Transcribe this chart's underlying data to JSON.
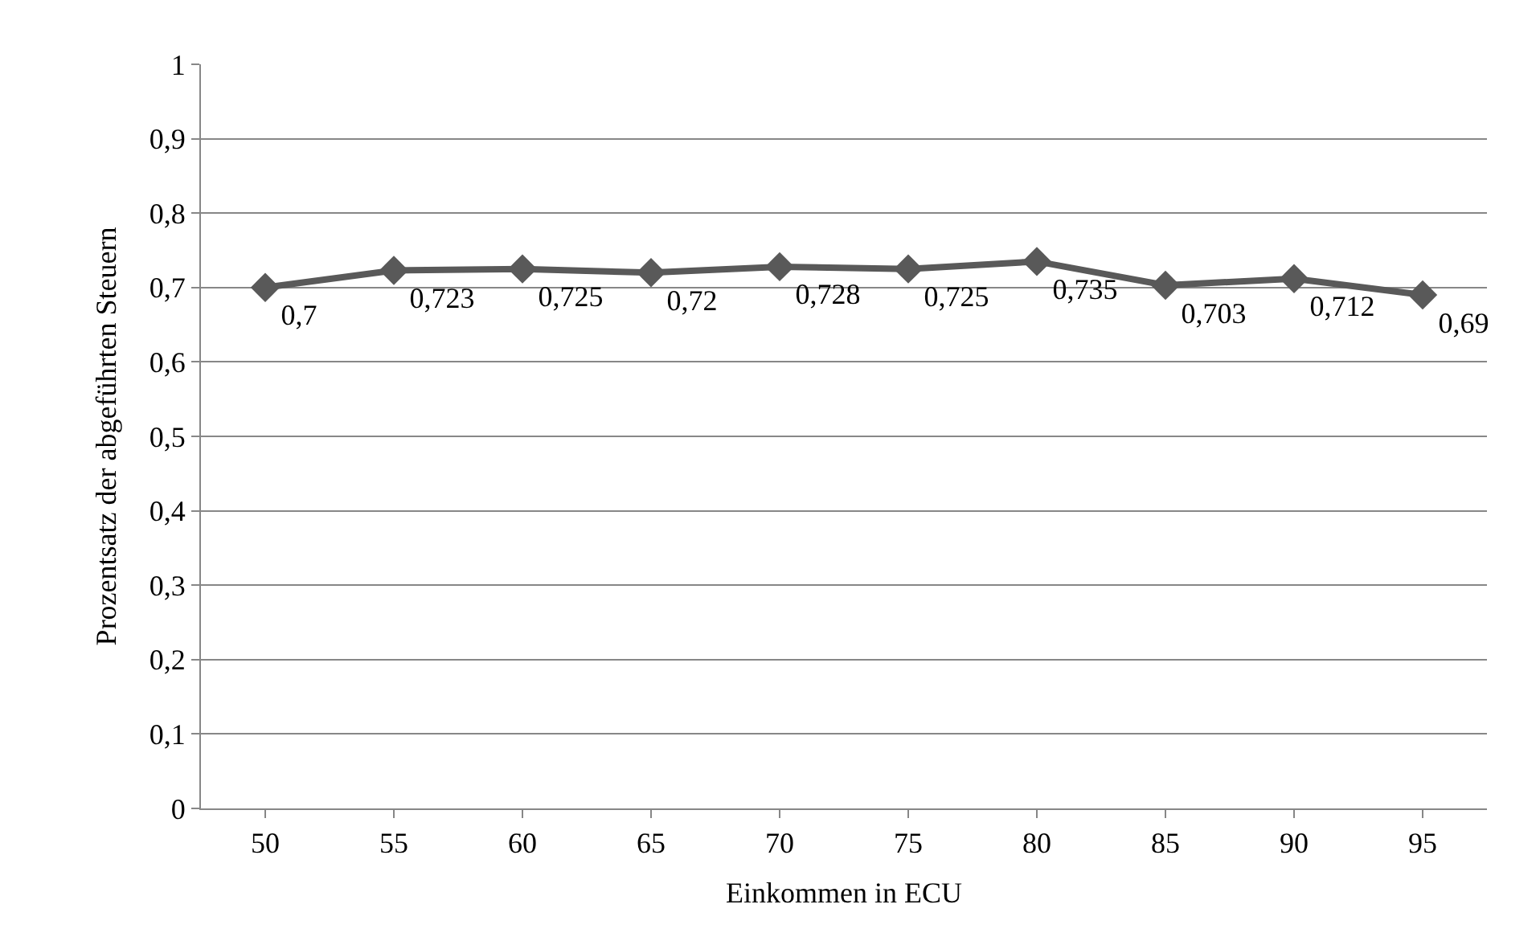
{
  "chart_data": {
    "type": "line",
    "xlabel": "Einkommen in ECU",
    "ylabel": "Prozentsatz der abgeführten Steuern",
    "categories": [
      "50",
      "55",
      "60",
      "65",
      "70",
      "75",
      "80",
      "85",
      "90",
      "95"
    ],
    "values": [
      0.7,
      0.723,
      0.725,
      0.72,
      0.728,
      0.725,
      0.735,
      0.703,
      0.712,
      0.69
    ],
    "value_labels": [
      "0,7",
      "0,723",
      "0,725",
      "0,72",
      "0,728",
      "0,725",
      "0,735",
      "0,703",
      "0,712",
      "0,69"
    ],
    "color": "#595959",
    "marker": "diamond",
    "line_style": "solid",
    "grid": "y",
    "legend": false,
    "ylim": [
      0,
      1
    ],
    "yticks": [
      0,
      {
        "value": 0.1,
        "label": "0,1"
      },
      {
        "value": 0.2,
        "label": "0,2"
      },
      {
        "value": 0.3,
        "label": "0,3"
      },
      {
        "value": 0.4,
        "label": "0,4"
      },
      {
        "value": 0.5,
        "label": "0,5"
      },
      {
        "value": 0.6,
        "label": "0,6"
      },
      {
        "value": 0.7,
        "label": "0,7"
      },
      {
        "value": 0.8,
        "label": "0,8"
      },
      {
        "value": 0.9,
        "label": "0,9"
      },
      1
    ]
  }
}
